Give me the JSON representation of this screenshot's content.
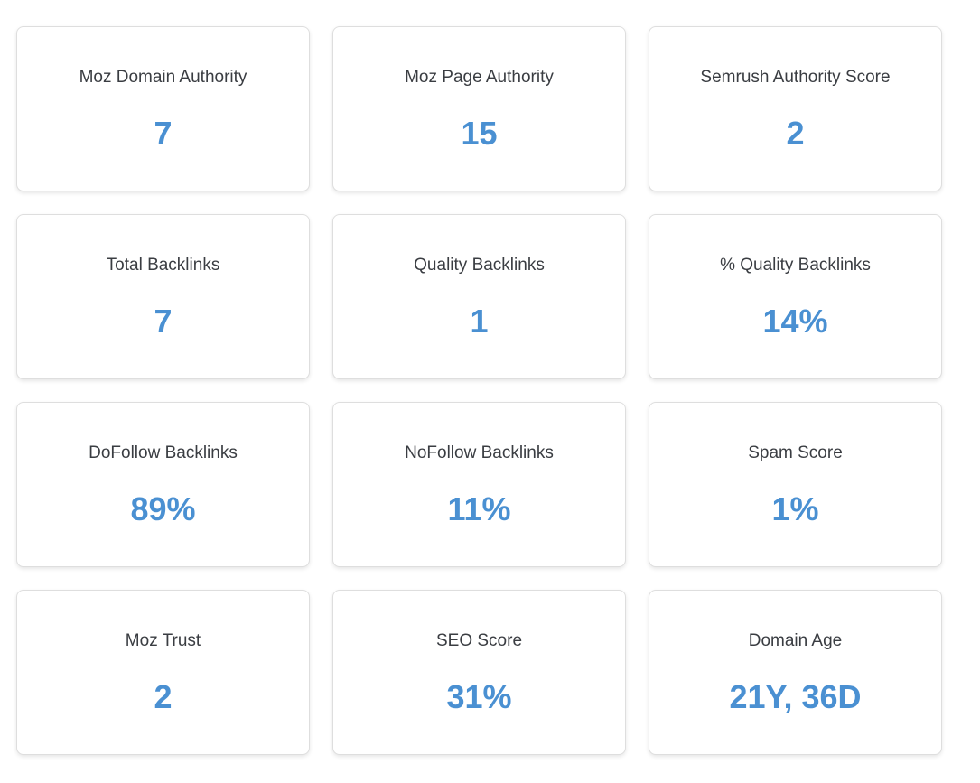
{
  "metrics": [
    {
      "label": "Moz Domain Authority",
      "value": "7"
    },
    {
      "label": "Moz Page Authority",
      "value": "15"
    },
    {
      "label": "Semrush Authority Score",
      "value": "2"
    },
    {
      "label": "Total Backlinks",
      "value": "7"
    },
    {
      "label": "Quality Backlinks",
      "value": "1"
    },
    {
      "label": "% Quality Backlinks",
      "value": "14%"
    },
    {
      "label": "DoFollow Backlinks",
      "value": "89%"
    },
    {
      "label": "NoFollow Backlinks",
      "value": "11%"
    },
    {
      "label": "Spam Score",
      "value": "1%"
    },
    {
      "label": "Moz Trust",
      "value": "2"
    },
    {
      "label": "SEO Score",
      "value": "31%"
    },
    {
      "label": "Domain Age",
      "value": "21Y, 36D"
    }
  ],
  "colors": {
    "accent": "#4a90d2",
    "label_text": "#3a3d42",
    "card_border": "#dedede",
    "background": "#ffffff"
  }
}
